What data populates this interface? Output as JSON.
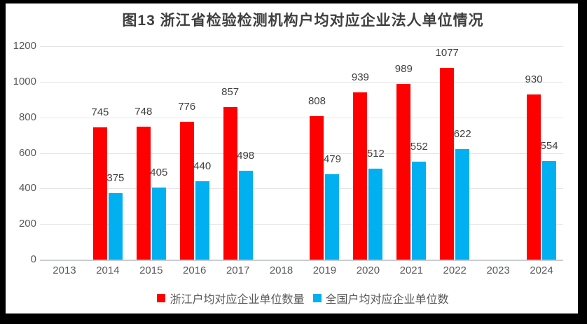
{
  "page": {
    "background_color": "#000000",
    "chart_background_color": "#ffffff"
  },
  "chart_data": {
    "type": "bar",
    "title": "图13 浙江省检验检测机构户均对应企业法人单位情况",
    "categories": [
      "2013",
      "2014",
      "2015",
      "2016",
      "2017",
      "2018",
      "2019",
      "2020",
      "2021",
      "2022",
      "2023",
      "2024"
    ],
    "series": [
      {
        "name": "浙江户均对应企业单位数量",
        "color": "#fe0000",
        "values": [
          null,
          745,
          748,
          776,
          857,
          null,
          808,
          939,
          989,
          1077,
          null,
          930
        ]
      },
      {
        "name": "全国户均对应企业单位数",
        "color": "#00b0f0",
        "values": [
          null,
          375,
          405,
          440,
          498,
          null,
          479,
          512,
          552,
          622,
          null,
          554
        ]
      }
    ],
    "xlabel": "",
    "ylabel": "",
    "ylim": [
      0,
      1200
    ],
    "yticks": [
      0,
      200,
      400,
      600,
      800,
      1000,
      1200
    ],
    "grid": "horizontal",
    "legend_position": "bottom",
    "colors": {
      "grid_line": "#e3e5e7",
      "axis_line": "#c9cdd0",
      "tick_text": "#595959",
      "value_label_text": "#404040",
      "title_text": "#3f3f3f"
    }
  }
}
